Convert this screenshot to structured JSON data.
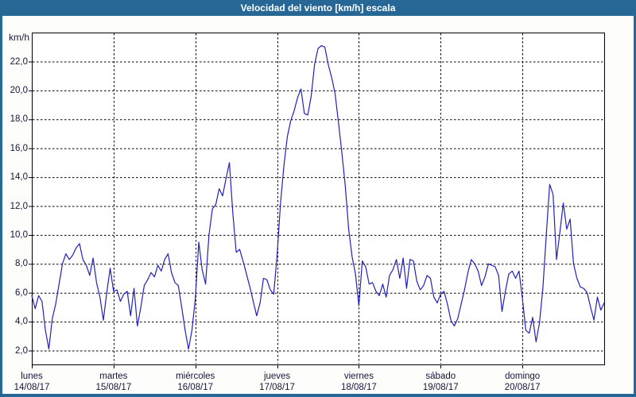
{
  "window": {
    "title": "Velocidad del viento [km/h] escala"
  },
  "colors": {
    "chrome": "#276795",
    "title_text": "#ffffff",
    "axis_text": "#14143c",
    "line": "#2121bd",
    "grid": "#000000",
    "content_bg": "#fdfefb",
    "plot_bg": "#ffffff"
  },
  "y_axis": {
    "unit_label": "km/h",
    "tick_labels": [
      "22,0",
      "20,0",
      "18,0",
      "16,0",
      "14,0",
      "12,0",
      "10,0",
      "8,0",
      "6,0",
      "4,0",
      "2,0"
    ],
    "tick_values": [
      22,
      20,
      18,
      16,
      14,
      12,
      10,
      8,
      6,
      4,
      2
    ]
  },
  "x_axis": {
    "days": [
      {
        "name": "lunes",
        "date": "14/08/17"
      },
      {
        "name": "martes",
        "date": "15/08/17"
      },
      {
        "name": "miércoles",
        "date": "16/08/17"
      },
      {
        "name": "jueves",
        "date": "17/08/17"
      },
      {
        "name": "viernes",
        "date": "18/08/17"
      },
      {
        "name": "sábado",
        "date": "19/08/17"
      },
      {
        "name": "domingo",
        "date": "20/08/17"
      }
    ]
  },
  "chart_data": {
    "type": "line",
    "title": "Velocidad del viento [km/h] escala",
    "xlabel": "",
    "ylabel": "km/h",
    "ylim": [
      1.0,
      24.0
    ],
    "y_ticks": [
      2,
      4,
      6,
      8,
      10,
      12,
      14,
      16,
      18,
      20,
      22
    ],
    "x_categories": [
      "lunes 14/08/17",
      "martes 15/08/17",
      "miércoles 16/08/17",
      "jueves 17/08/17",
      "viernes 18/08/17",
      "sábado 19/08/17",
      "domingo 20/08/17"
    ],
    "grid": "dashed-both-axes",
    "legend_position": "none",
    "sampling_interval_hours": 1,
    "x_range_hours": [
      0,
      168
    ],
    "series": [
      {
        "name": "Velocidad del viento",
        "unit": "km/h",
        "color": "#2121bd",
        "values_hourly": [
          5.8,
          4.9,
          5.8,
          5.4,
          3.4,
          2.1,
          4.2,
          5.2,
          6.6,
          8.0,
          8.7,
          8.3,
          8.6,
          9.1,
          9.4,
          8.3,
          7.9,
          7.2,
          8.4,
          6.7,
          5.7,
          4.1,
          6.0,
          7.7,
          6.1,
          6.2,
          5.4,
          5.9,
          6.1,
          4.4,
          6.3,
          3.7,
          5.0,
          6.5,
          6.9,
          7.4,
          7.1,
          7.9,
          7.5,
          8.3,
          8.7,
          7.4,
          6.7,
          6.5,
          5.0,
          3.4,
          2.1,
          3.4,
          5.6,
          9.5,
          7.6,
          6.6,
          10.0,
          11.8,
          12.1,
          13.2,
          12.7,
          13.9,
          15.0,
          11.5,
          8.8,
          9.0,
          8.2,
          7.3,
          6.4,
          5.4,
          4.4,
          5.3,
          7.0,
          6.9,
          6.2,
          5.9,
          8.6,
          12.2,
          14.8,
          16.8,
          17.9,
          18.6,
          19.5,
          20.1,
          18.4,
          18.3,
          19.6,
          21.8,
          22.9,
          23.1,
          23.0,
          21.8,
          20.9,
          19.8,
          17.8,
          15.7,
          13.4,
          10.4,
          8.5,
          7.3,
          5.1,
          8.2,
          7.8,
          6.6,
          6.7,
          6.1,
          5.8,
          6.6,
          5.7,
          7.2,
          7.6,
          8.3,
          7.0,
          8.4,
          6.3,
          8.3,
          8.2,
          6.8,
          6.2,
          6.5,
          7.2,
          7.0,
          5.7,
          5.3,
          5.9,
          6.1,
          5.2,
          4.1,
          3.7,
          4.2,
          5.2,
          6.2,
          7.4,
          8.3,
          8.0,
          7.5,
          6.5,
          7.1,
          8.0,
          7.9,
          7.8,
          7.2,
          4.7,
          6.1,
          7.3,
          7.5,
          7.0,
          7.5,
          5.6,
          3.4,
          3.2,
          4.3,
          2.6,
          3.9,
          6.3,
          10.0,
          13.5,
          12.8,
          8.3,
          10.2,
          12.2,
          10.4,
          11.1,
          8.0,
          7.0,
          6.4,
          6.3,
          6.0,
          5.0,
          4.1,
          5.7,
          4.8,
          5.3
        ]
      }
    ]
  }
}
